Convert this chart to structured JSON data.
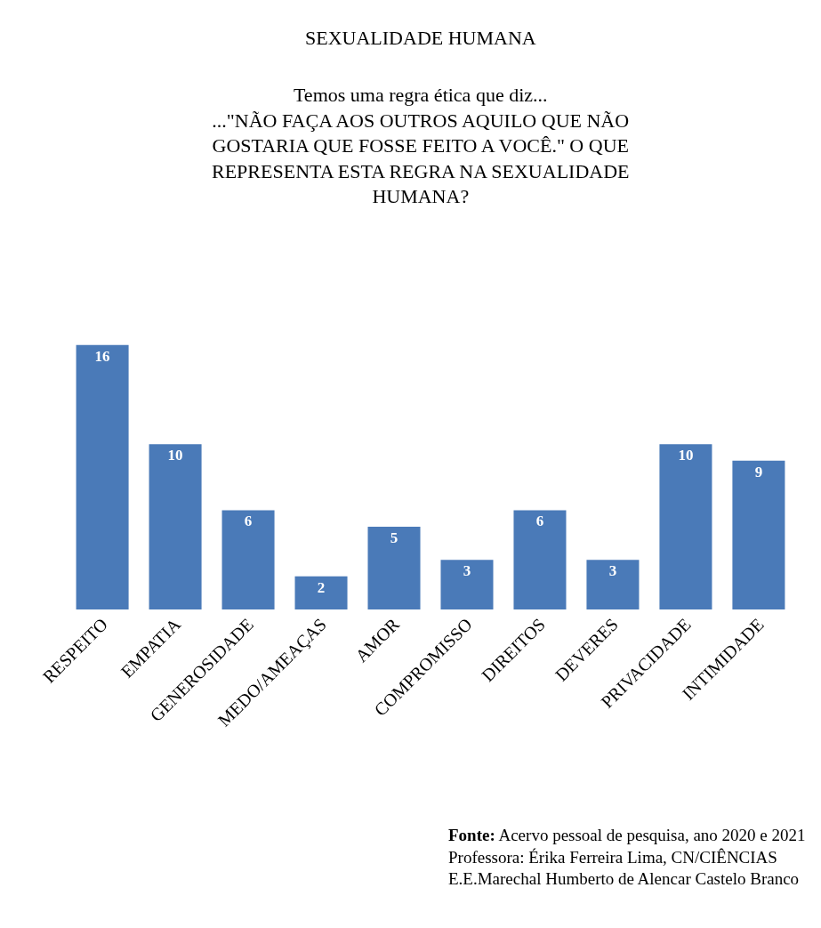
{
  "chart_data": {
    "type": "bar",
    "title": "SEXUALIDADE HUMANA",
    "subtitle": "Temos uma regra ética que diz...\n...\"NÃO FAÇA AOS OUTROS AQUILO QUE NÃO\nGOSTARIA QUE FOSSE FEITO A VOCÊ.\" O QUE\nREPRESENTA ESTA REGRA NA SEXUALIDADE\nHUMANA?",
    "categories": [
      "RESPEITO",
      "EMPATIA",
      "GENEROSIDADE",
      "MEDO/AMEAÇAS",
      "AMOR",
      "COMPROMISSO",
      "DIREITOS",
      "DEVERES",
      "PRIVACIDADE",
      "INTIMIDADE"
    ],
    "values": [
      16,
      10,
      6,
      2,
      5,
      3,
      6,
      3,
      10,
      9
    ],
    "color": "#4a7ab8",
    "data_labels": true,
    "grid": false,
    "annotations": [
      "Fonte: Acervo pessoal de pesquisa, ano 2020 e 2021\nProfessora: Érika Ferreira Lima, CN/CIÊNCIAS\nE.E.Marechal Humberto de Alencar Castelo Branco"
    ]
  }
}
